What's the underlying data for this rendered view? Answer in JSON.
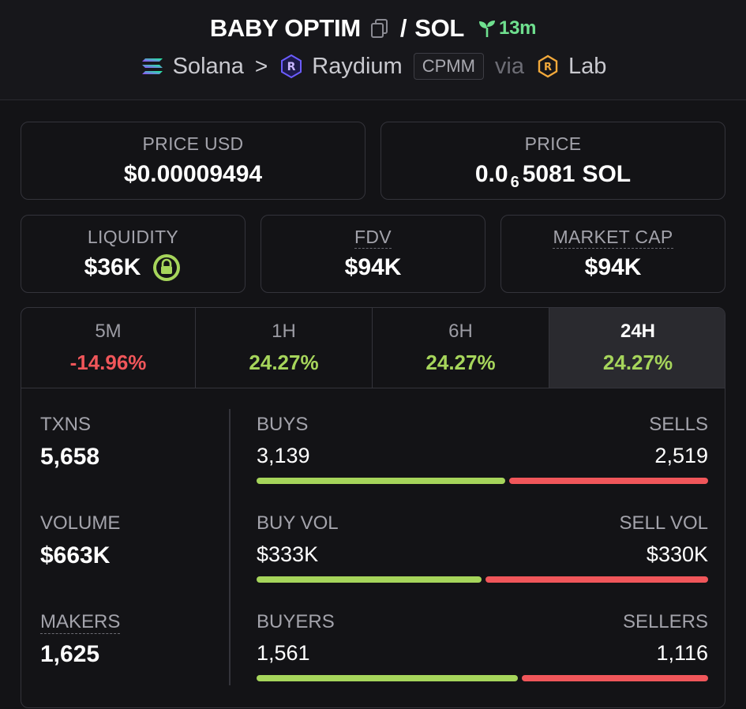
{
  "header": {
    "token": "BABY OPTIM",
    "slash": "/",
    "quote": "SOL",
    "age": "13m",
    "chain": "Solana",
    "route_sep": ">",
    "dex": "Raydium",
    "pool_type": "CPMM",
    "via": "via",
    "launchpad": "Lab"
  },
  "price_usd": {
    "label": "PRICE USD",
    "value": "$0.00009494"
  },
  "price_native": {
    "label": "PRICE",
    "value_prefix": "0.0",
    "zero_count": "6",
    "value_digits": "5081",
    "unit": "SOL"
  },
  "liquidity": {
    "label": "LIQUIDITY",
    "value": "$36K"
  },
  "fdv": {
    "label": "FDV",
    "value": "$94K"
  },
  "market_cap": {
    "label": "MARKET CAP",
    "value": "$94K"
  },
  "timeframes": [
    {
      "label": "5M",
      "change": "-14.96%"
    },
    {
      "label": "1H",
      "change": "24.27%"
    },
    {
      "label": "6H",
      "change": "24.27%"
    },
    {
      "label": "24H",
      "change": "24.27%"
    }
  ],
  "active_timeframe": "24H",
  "stats": {
    "txns": {
      "label": "TXNS",
      "value": "5,658"
    },
    "volume": {
      "label": "VOLUME",
      "value": "$663K"
    },
    "makers": {
      "label": "MAKERS",
      "value": "1,625"
    }
  },
  "ratios": {
    "buys": {
      "left_label": "BUYS",
      "right_label": "SELLS",
      "left_value": "3,139",
      "right_value": "2,519",
      "left_fraction": 0.555
    },
    "volume": {
      "left_label": "BUY VOL",
      "right_label": "SELL VOL",
      "left_value": "$333K",
      "right_value": "$330K",
      "left_fraction": 0.502
    },
    "buyers": {
      "left_label": "BUYERS",
      "right_label": "SELLERS",
      "left_value": "1,561",
      "right_value": "1,116",
      "left_fraction": 0.583
    }
  },
  "colors": {
    "positive": "#a6d55b",
    "negative": "#f0565a",
    "age_green": "#6fe08f",
    "background": "#131316"
  },
  "icons": {
    "copy": "copy-icon",
    "age": "sprout-icon",
    "chain": "solana-logo-icon",
    "dex": "raydium-logo-icon",
    "launchpad": "lab-logo-icon",
    "liquidity_lock": "lock-icon"
  }
}
